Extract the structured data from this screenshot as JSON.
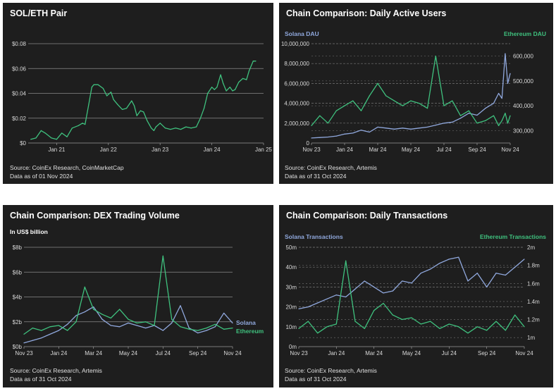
{
  "colors": {
    "panel_bg": "#1e1e1e",
    "green": "#3fc17e",
    "blue": "#90a8dd",
    "grid_solid": "#8a8a8a",
    "grid_dashed": "#777777"
  },
  "charts": [
    {
      "id": "sol-eth",
      "title": "SOL/ETH Pair",
      "footer": [
        "Source: CoinEx Research, CoinMarketCap",
        "Data as of 01 Nov 2024"
      ],
      "chart_data": {
        "type": "line",
        "title": "SOL/ETH Pair",
        "x_ticks": [
          "Jan 21",
          "Jan 22",
          "Jan 23",
          "Jan 24",
          "Jan 25"
        ],
        "x_range": [
          2020.45,
          2025.0
        ],
        "y_ticks": [
          "$0",
          "$0.02",
          "$0.04",
          "$0.06",
          "$0.08"
        ],
        "ylim": [
          0,
          0.08
        ],
        "grid": "horizontal-solid",
        "series": [
          {
            "color": "green",
            "x": [
              2020.5,
              2020.6,
              2020.7,
              2020.78,
              2020.9,
              2021.0,
              2021.1,
              2021.2,
              2021.3,
              2021.42,
              2021.5,
              2021.55,
              2021.62,
              2021.68,
              2021.72,
              2021.8,
              2021.9,
              2021.97,
              2022.05,
              2022.1,
              2022.18,
              2022.27,
              2022.35,
              2022.45,
              2022.5,
              2022.55,
              2022.62,
              2022.68,
              2022.75,
              2022.83,
              2022.88,
              2022.92,
              2023.0,
              2023.1,
              2023.2,
              2023.3,
              2023.4,
              2023.5,
              2023.6,
              2023.7,
              2023.78,
              2023.85,
              2023.92,
              2024.0,
              2024.05,
              2024.1,
              2024.17,
              2024.22,
              2024.28,
              2024.35,
              2024.4,
              2024.45,
              2024.52,
              2024.6,
              2024.67,
              2024.72,
              2024.8,
              2024.85
            ],
            "y": [
              0.003,
              0.004,
              0.01,
              0.008,
              0.004,
              0.003,
              0.008,
              0.005,
              0.012,
              0.014,
              0.016,
              0.015,
              0.031,
              0.045,
              0.047,
              0.047,
              0.044,
              0.038,
              0.041,
              0.035,
              0.031,
              0.027,
              0.028,
              0.034,
              0.03,
              0.022,
              0.026,
              0.025,
              0.018,
              0.012,
              0.01,
              0.013,
              0.016,
              0.012,
              0.011,
              0.012,
              0.011,
              0.013,
              0.012,
              0.013,
              0.02,
              0.028,
              0.04,
              0.045,
              0.043,
              0.045,
              0.055,
              0.048,
              0.042,
              0.045,
              0.042,
              0.043,
              0.049,
              0.052,
              0.051,
              0.058,
              0.066,
              0.066
            ]
          }
        ]
      }
    },
    {
      "id": "dau",
      "title": "Chain Comparison: Daily Active Users",
      "footer": [
        "Source: CoinEx Research, Artemis",
        "Data as of 31 Oct 2024"
      ],
      "chart_data": {
        "type": "line",
        "title": "Chain Comparison: Daily Active Users",
        "x_ticks": [
          "Nov 23",
          "Jan 24",
          "Mar 24",
          "May 24",
          "Jul 24",
          "Sep 24",
          "Nov 24"
        ],
        "x_range": [
          0,
          12
        ],
        "y_left_ticks": [
          "0",
          "2,000,000",
          "4,000,000",
          "6,000,000",
          "8,000,000",
          "10,000,000"
        ],
        "ylim_left": [
          0,
          10000000
        ],
        "y_right_ticks": [
          "300,000",
          "400,000",
          "500,000",
          "600,000"
        ],
        "ylim_right": [
          250000,
          650000
        ],
        "grid": "horizontal-dashed",
        "series": [
          {
            "name": "Solana DAU",
            "axis": "left",
            "color": "blue",
            "x": [
              0,
              0.5,
              1,
              1.5,
              2,
              2.5,
              3,
              3.5,
              4,
              4.5,
              5,
              5.5,
              6,
              6.5,
              7,
              7.5,
              8,
              8.5,
              9,
              9.5,
              10,
              10.5,
              11,
              11.3,
              11.5,
              11.7,
              11.85,
              12
            ],
            "y": [
              500000,
              550000,
              600000,
              700000,
              900000,
              1000000,
              1300000,
              1100000,
              1600000,
              1500000,
              1400000,
              1500000,
              1400000,
              1500000,
              1600000,
              1800000,
              2000000,
              2100000,
              2500000,
              3000000,
              2800000,
              3500000,
              4000000,
              5000000,
              4500000,
              9000000,
              6000000,
              7000000
            ]
          },
          {
            "name": "Ethereum DAU",
            "axis": "right",
            "color": "green",
            "x": [
              0,
              0.5,
              1,
              1.5,
              2,
              2.5,
              3,
              3.5,
              4,
              4.5,
              5,
              5.5,
              6,
              6.5,
              7,
              7.5,
              8,
              8.5,
              9,
              9.5,
              10,
              10.5,
              11,
              11.3,
              11.5,
              11.7,
              11.85,
              12
            ],
            "y": [
              320000,
              360000,
              330000,
              380000,
              400000,
              420000,
              380000,
              440000,
              490000,
              440000,
              420000,
              400000,
              420000,
              410000,
              390000,
              600000,
              400000,
              420000,
              360000,
              380000,
              330000,
              340000,
              360000,
              320000,
              340000,
              370000,
              330000,
              360000
            ]
          }
        ]
      }
    },
    {
      "id": "dex",
      "title": "Chain Comparison: DEX Trading Volume",
      "unit": "In US$ billion",
      "footer": [
        "Source: CoinEx Research, Artemis",
        "Data as of 31 Oct 2024"
      ],
      "chart_data": {
        "type": "line",
        "title": "Chain Comparison: DEX Trading Volume",
        "ylabel": "In US$ billion",
        "x_ticks": [
          "Nov 23",
          "Jan 24",
          "Mar 24",
          "May 24",
          "Jul 24",
          "Sep 24",
          "Nov 24"
        ],
        "x_range": [
          0,
          12
        ],
        "y_ticks": [
          "$0b",
          "$2b",
          "$4b",
          "$6b",
          "$8b"
        ],
        "ylim": [
          0,
          8
        ],
        "grid": "horizontal-solid",
        "series": [
          {
            "name": "Solana",
            "color": "blue",
            "x": [
              0,
              0.5,
              1,
              1.5,
              2,
              2.5,
              3,
              3.5,
              4,
              4.5,
              5,
              5.5,
              6,
              6.5,
              7,
              7.5,
              8,
              8.5,
              9,
              9.5,
              10,
              10.5,
              11,
              11.5,
              12
            ],
            "y": [
              0.3,
              0.5,
              0.7,
              1.0,
              1.3,
              1.8,
              2.5,
              2.8,
              3.2,
              2.2,
              1.7,
              1.6,
              1.9,
              1.7,
              1.5,
              1.7,
              1.3,
              1.9,
              3.3,
              1.5,
              1.1,
              1.3,
              1.6,
              2.7,
              1.9
            ]
          },
          {
            "name": "Ethereum",
            "color": "green",
            "x": [
              0,
              0.5,
              1,
              1.5,
              2,
              2.5,
              3,
              3.5,
              4,
              4.5,
              5,
              5.5,
              6,
              6.5,
              7,
              7.5,
              8,
              8.5,
              9,
              9.5,
              10,
              10.5,
              11,
              11.5,
              12
            ],
            "y": [
              1.0,
              1.5,
              1.3,
              1.6,
              1.7,
              1.3,
              2.0,
              4.8,
              3.0,
              2.6,
              2.3,
              3.0,
              2.2,
              1.9,
              2.0,
              1.7,
              7.3,
              2.2,
              1.6,
              1.4,
              1.3,
              1.5,
              1.8,
              1.4,
              1.5
            ]
          }
        ]
      }
    },
    {
      "id": "txn",
      "title": "Chain Comparison: Daily Transactions",
      "footer": [
        "Source: CoinEx Research, Artemis",
        "Data as of 31 Oct 2024"
      ],
      "chart_data": {
        "type": "line",
        "title": "Chain Comparison: Daily Transactions",
        "x_ticks": [
          "Nov 23",
          "Jan 24",
          "Mar 24",
          "May 24",
          "Jul 24",
          "Sep 24",
          "Nov 24"
        ],
        "x_range": [
          0,
          12
        ],
        "y_left_ticks": [
          "0m",
          "10m",
          "20m",
          "30m",
          "40m",
          "50m"
        ],
        "ylim_left": [
          0,
          50
        ],
        "y_right_ticks": [
          "1m",
          "1.2m",
          "1.4m",
          "1.6m",
          "1.8m",
          "2m"
        ],
        "ylim_right": [
          0.9,
          2.0
        ],
        "grid": "horizontal-dashed",
        "series": [
          {
            "name": "Solana Transactions",
            "axis": "left",
            "color": "blue",
            "x": [
              0,
              0.5,
              1,
              1.5,
              2,
              2.5,
              3,
              3.5,
              4,
              4.5,
              5,
              5.5,
              6,
              6.5,
              7,
              7.5,
              8,
              8.5,
              9,
              9.5,
              10,
              10.5,
              11,
              11.5,
              12
            ],
            "y": [
              19,
              20,
              22,
              24,
              26,
              25,
              29,
              33,
              30,
              27,
              28,
              33,
              32,
              37,
              39,
              42,
              44,
              45,
              33,
              37,
              30,
              37,
              36,
              40,
              44
            ]
          },
          {
            "name": "Ethereum Transactions",
            "axis": "right",
            "color": "green",
            "x": [
              0,
              0.5,
              1,
              1.5,
              2,
              2.5,
              3,
              3.5,
              4,
              4.5,
              5,
              5.5,
              6,
              6.5,
              7,
              7.5,
              8,
              8.5,
              9,
              9.5,
              10,
              10.5,
              11,
              11.5,
              12
            ],
            "y": [
              1.1,
              1.18,
              1.05,
              1.12,
              1.15,
              1.85,
              1.18,
              1.1,
              1.3,
              1.38,
              1.25,
              1.2,
              1.22,
              1.15,
              1.18,
              1.1,
              1.15,
              1.12,
              1.05,
              1.12,
              1.08,
              1.18,
              1.08,
              1.25,
              1.12
            ]
          }
        ]
      }
    }
  ]
}
